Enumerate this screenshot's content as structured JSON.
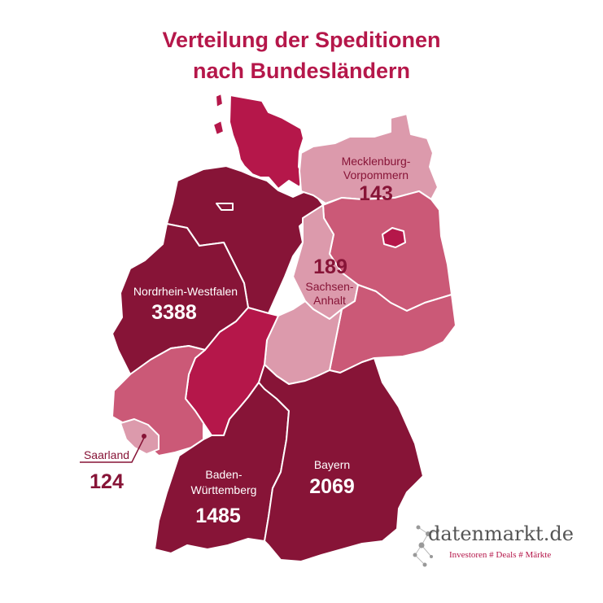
{
  "title": {
    "line1": "Verteilung der Speditionen",
    "line2": "nach Bundesländern"
  },
  "colors": {
    "title": "#b5174a",
    "dark": "#871437",
    "bright": "#b5174a",
    "medium": "#cb5977",
    "light": "#dc9aac",
    "border": "#ffffff"
  },
  "regions": [
    {
      "name": "Schleswig-Holstein",
      "tone": "bright"
    },
    {
      "name": "Niedersachsen",
      "tone": "dark"
    },
    {
      "name": "Mecklenburg-Vorpommern",
      "tone": "light"
    },
    {
      "name": "Brandenburg",
      "tone": "medium"
    },
    {
      "name": "Berlin",
      "tone": "bright"
    },
    {
      "name": "Sachsen-Anhalt",
      "tone": "light"
    },
    {
      "name": "Sachsen",
      "tone": "medium"
    },
    {
      "name": "Thüringen",
      "tone": "light"
    },
    {
      "name": "Nordrhein-Westfalen",
      "tone": "dark"
    },
    {
      "name": "Hessen",
      "tone": "bright"
    },
    {
      "name": "Rheinland-Pfalz",
      "tone": "medium"
    },
    {
      "name": "Saarland",
      "tone": "light"
    },
    {
      "name": "Baden-Württemberg",
      "tone": "dark"
    },
    {
      "name": "Bayern",
      "tone": "dark"
    }
  ],
  "labels": {
    "mv": {
      "line1": "Mecklenburg-",
      "line2": "Vorpommern",
      "value": "143"
    },
    "st": {
      "line1": "Sachsen-",
      "line2": "Anhalt",
      "value": "189"
    },
    "nrw": {
      "line1": "Nordrhein-Westfalen",
      "value": "3388"
    },
    "sl": {
      "line1": "Saarland",
      "value": "124"
    },
    "bw": {
      "line1": "Baden-",
      "line2": "Württemberg",
      "value": "1485"
    },
    "by": {
      "line1": "Bayern",
      "value": "2069"
    }
  },
  "logo": {
    "name": "datenmarkt.de",
    "tagline": "Investoren # Deals # Märkte"
  }
}
